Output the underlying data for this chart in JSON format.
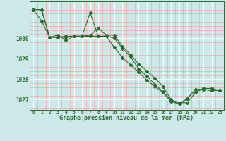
{
  "line1": {
    "x": [
      0,
      1,
      2,
      3,
      4,
      5,
      6,
      7,
      8,
      9,
      10,
      11,
      12,
      13,
      14,
      15,
      16,
      17,
      18,
      19,
      20,
      21,
      22,
      23
    ],
    "y": [
      1031.4,
      1030.85,
      1030.05,
      1030.15,
      1029.9,
      1030.1,
      1030.1,
      1030.15,
      1030.5,
      1030.15,
      1030.15,
      1029.6,
      1029.2,
      1028.75,
      1028.4,
      1028.05,
      1027.65,
      1027.0,
      1026.85,
      1026.85,
      1027.35,
      1027.55,
      1027.55,
      1027.45
    ]
  },
  "line2": {
    "x": [
      0,
      1,
      2,
      3,
      4,
      5,
      6,
      7,
      8,
      9,
      10,
      11,
      12,
      13,
      14,
      15,
      16,
      17,
      18,
      19,
      20,
      21,
      22,
      23
    ],
    "y": [
      1031.4,
      1031.4,
      1030.05,
      1030.05,
      1030.05,
      1030.1,
      1030.1,
      1031.25,
      1030.1,
      1030.1,
      1029.55,
      1029.05,
      1028.7,
      1028.35,
      1027.95,
      1027.65,
      1027.35,
      1026.9,
      1026.8,
      1027.05,
      1027.5,
      1027.5,
      1027.45,
      1027.45
    ]
  },
  "line3": {
    "x": [
      0,
      1,
      2,
      3,
      4,
      5,
      6,
      7,
      8,
      9,
      10,
      11,
      12,
      13,
      14,
      15,
      16,
      17,
      18,
      19,
      20,
      21,
      22,
      23
    ],
    "y": [
      1031.4,
      1031.4,
      1030.05,
      1030.05,
      1030.1,
      1030.1,
      1030.1,
      1030.1,
      1030.1,
      1030.1,
      1030.0,
      1029.5,
      1029.1,
      1028.5,
      1028.15,
      1027.75,
      1027.4,
      1026.95,
      1026.8,
      1027.05,
      1027.5,
      1027.5,
      1027.45,
      1027.45
    ]
  },
  "bg_color": "#cce8e8",
  "line_color": "#2d6a2d",
  "grid_major_color": "#ffffff",
  "grid_minor_color": "#f0aaaa",
  "xlabel": "Graphe pression niveau de la mer (hPa)",
  "ylim": [
    1026.5,
    1031.8
  ],
  "yticks": [
    1027,
    1028,
    1029,
    1030
  ],
  "xticks": [
    0,
    1,
    2,
    3,
    4,
    5,
    6,
    7,
    8,
    9,
    10,
    11,
    12,
    13,
    14,
    15,
    16,
    17,
    18,
    19,
    20,
    21,
    22,
    23
  ],
  "marker": "D",
  "markersize": 2.0,
  "linewidth": 0.8
}
